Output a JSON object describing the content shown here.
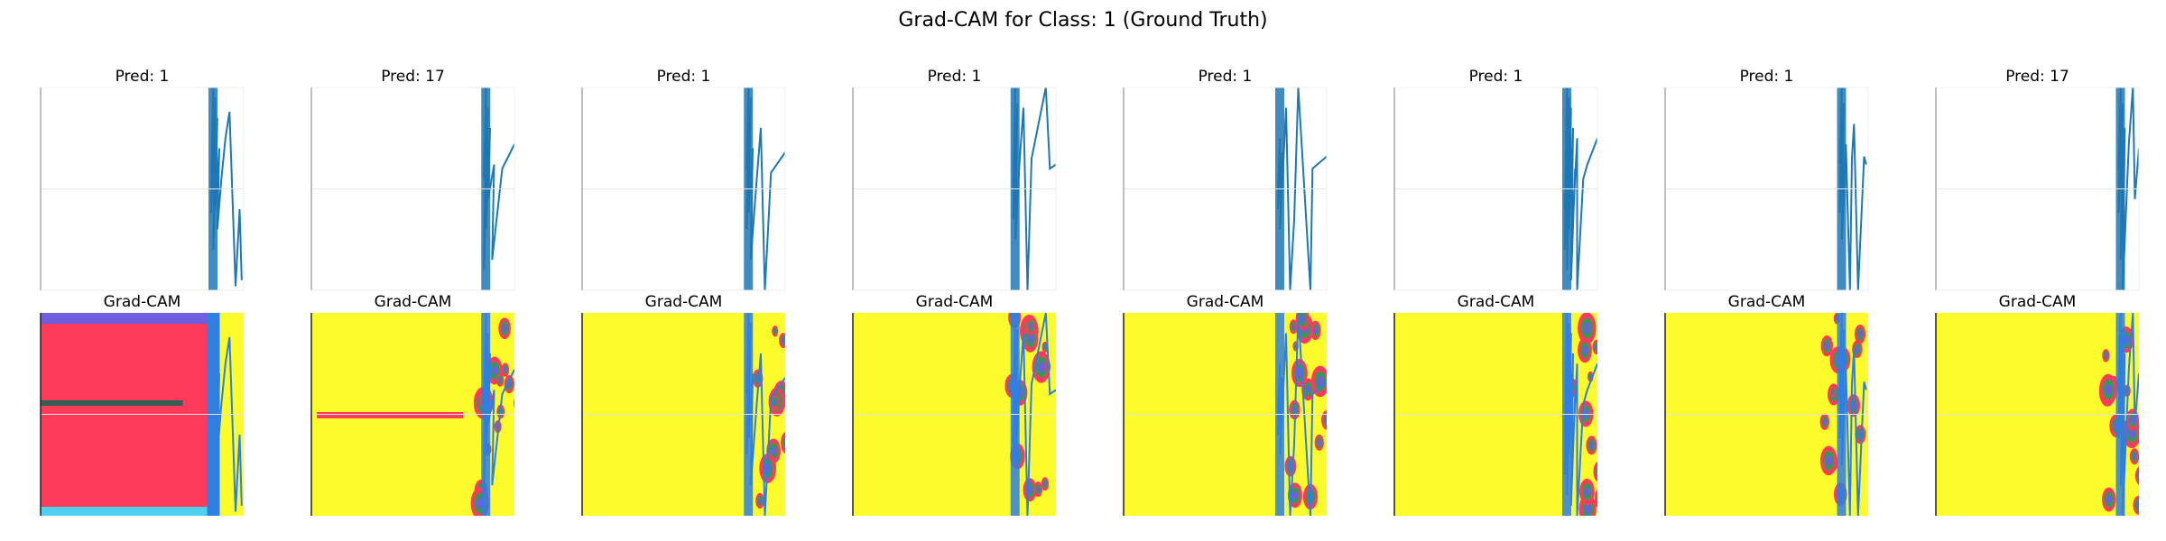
{
  "figure": {
    "suptitle": "Grad-CAM for Class: 1 (Ground Truth)"
  },
  "colors": {
    "signal": "#1f77b4",
    "cam_yellow": "#fcfc2c",
    "cam_red": "#ff3b5c",
    "cam_blue": "#2f7fe0",
    "cam_purple": "#6f5fe0",
    "cam_green": "#2e9e50",
    "cam_teal": "#2f5f55",
    "cam_pink": "#e63a8a",
    "cam_cyan": "#4fd0f0"
  },
  "chart_data": [
    {
      "type": "line",
      "row": "prediction",
      "title": "Pred: 1",
      "pred": 1,
      "ground_truth": 1,
      "axis": "off",
      "series": [
        {
          "x": [
            0.84,
            0.85,
            0.84,
            0.86,
            0.85,
            0.87,
            0.86,
            0.88,
            0.87,
            0.89,
            0.91,
            0.93,
            0.96,
            0.98,
            0.99
          ],
          "y": [
            0.5,
            1.0,
            0.38,
            0.95,
            0.2,
            0.85,
            0.4,
            0.7,
            0.3,
            0.55,
            0.75,
            0.88,
            0.02,
            0.4,
            0.05
          ]
        }
      ]
    },
    {
      "type": "line",
      "row": "prediction",
      "title": "Pred: 17",
      "pred": 17,
      "ground_truth": 1,
      "axis": "off",
      "series": [
        {
          "x": [
            0.85,
            0.86,
            0.85,
            0.87,
            0.86,
            0.88,
            0.87,
            0.9,
            0.89,
            0.94,
            1.0
          ],
          "y": [
            0.55,
            1.0,
            0.1,
            0.9,
            0.3,
            0.8,
            0.45,
            0.62,
            0.15,
            0.6,
            0.72
          ]
        }
      ]
    },
    {
      "type": "line",
      "row": "prediction",
      "title": "Pred: 1",
      "pred": 1,
      "ground_truth": 1,
      "axis": "off",
      "series": [
        {
          "x": [
            0.81,
            0.82,
            0.81,
            0.83,
            0.82,
            0.84,
            0.83,
            0.86,
            0.88,
            0.9,
            0.93,
            1.0
          ],
          "y": [
            0.6,
            1.0,
            0.3,
            0.95,
            0.38,
            0.7,
            0.15,
            0.55,
            0.8,
            0.0,
            0.58,
            0.68
          ]
        }
      ]
    },
    {
      "type": "line",
      "row": "prediction",
      "title": "Pred: 1",
      "pred": 1,
      "ground_truth": 1,
      "axis": "off",
      "series": [
        {
          "x": [
            0.79,
            0.8,
            0.79,
            0.81,
            0.8,
            0.82,
            0.84,
            0.86,
            0.88,
            0.95,
            0.97,
            1.0
          ],
          "y": [
            0.5,
            1.0,
            0.35,
            0.92,
            0.25,
            0.62,
            0.9,
            0.0,
            0.65,
            1.0,
            0.6,
            0.62
          ]
        }
      ]
    },
    {
      "type": "line",
      "row": "prediction",
      "title": "Pred: 1",
      "pred": 1,
      "ground_truth": 1,
      "axis": "off",
      "series": [
        {
          "x": [
            0.76,
            0.77,
            0.76,
            0.78,
            0.77,
            0.8,
            0.82,
            0.84,
            0.86,
            0.92,
            0.93,
            1.0
          ],
          "y": [
            0.5,
            0.75,
            0.4,
            0.68,
            0.3,
            0.9,
            0.0,
            0.35,
            1.0,
            0.0,
            0.6,
            0.66
          ]
        }
      ]
    },
    {
      "type": "line",
      "row": "prediction",
      "title": "Pred: 1",
      "pred": 1,
      "ground_truth": 1,
      "axis": "off",
      "series": [
        {
          "x": [
            0.84,
            0.85,
            0.84,
            0.86,
            0.85,
            0.87,
            0.86,
            0.88,
            0.87,
            0.89,
            0.88,
            0.9,
            0.9,
            0.93,
            0.95,
            1.0
          ],
          "y": [
            0.4,
            1.0,
            0.2,
            0.95,
            0.1,
            0.9,
            0.3,
            0.8,
            0.05,
            0.6,
            0.35,
            0.75,
            0.0,
            0.55,
            0.62,
            0.75
          ]
        }
      ]
    },
    {
      "type": "line",
      "row": "prediction",
      "title": "Pred: 1",
      "pred": 1,
      "ground_truth": 1,
      "axis": "off",
      "series": [
        {
          "x": [
            0.86,
            0.87,
            0.86,
            0.88,
            0.87,
            0.89,
            0.91,
            0.92,
            0.93,
            0.95,
            0.98,
            0.99
          ],
          "y": [
            0.62,
            1.0,
            0.38,
            0.92,
            0.25,
            0.72,
            0.0,
            0.65,
            0.82,
            0.0,
            0.66,
            0.62
          ]
        }
      ]
    },
    {
      "type": "line",
      "row": "prediction",
      "title": "Pred: 17",
      "pred": 17,
      "ground_truth": 1,
      "axis": "off",
      "series": [
        {
          "x": [
            0.9,
            0.91,
            0.9,
            0.92,
            0.91,
            0.93,
            0.92,
            0.95,
            0.97,
            0.98,
            1.0
          ],
          "y": [
            0.6,
            1.0,
            0.38,
            0.92,
            0.15,
            0.8,
            0.0,
            0.72,
            1.0,
            0.45,
            0.7
          ]
        }
      ]
    },
    {
      "type": "heatmap",
      "row": "gradcam",
      "title": "Grad-CAM",
      "axis": "off"
    },
    {
      "type": "heatmap",
      "row": "gradcam",
      "title": "Grad-CAM",
      "axis": "off"
    },
    {
      "type": "heatmap",
      "row": "gradcam",
      "title": "Grad-CAM",
      "axis": "off"
    },
    {
      "type": "heatmap",
      "row": "gradcam",
      "title": "Grad-CAM",
      "axis": "off"
    },
    {
      "type": "heatmap",
      "row": "gradcam",
      "title": "Grad-CAM",
      "axis": "off"
    },
    {
      "type": "heatmap",
      "row": "gradcam",
      "title": "Grad-CAM",
      "axis": "off"
    },
    {
      "type": "heatmap",
      "row": "gradcam",
      "title": "Grad-CAM",
      "axis": "off"
    },
    {
      "type": "heatmap",
      "row": "gradcam",
      "title": "Grad-CAM",
      "axis": "off"
    }
  ]
}
